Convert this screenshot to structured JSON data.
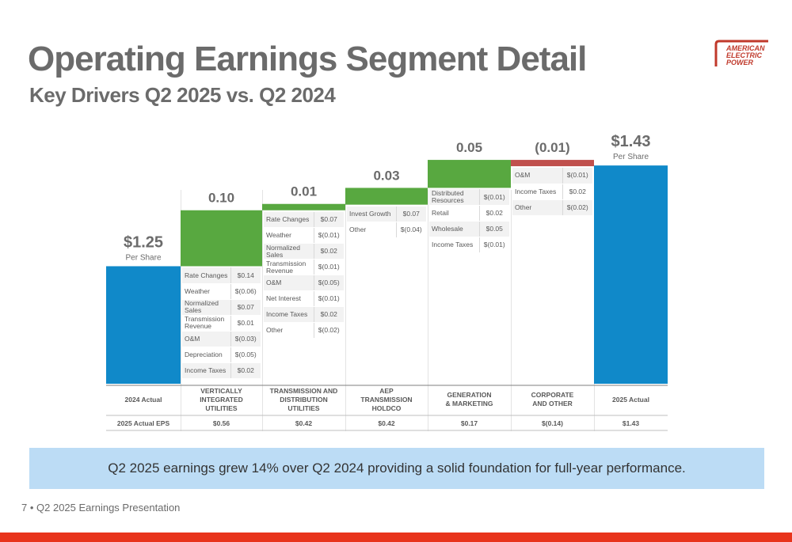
{
  "title": "Operating Earnings Segment Detail",
  "subtitle": "Key Drivers Q2 2025 vs. Q2 2024",
  "logo": {
    "lines": [
      "AMERICAN",
      "ELECTRIC",
      "POWER"
    ],
    "color": "#c0392b"
  },
  "banner_text": "Q2 2025 earnings grew 14% over Q2 2024 providing a solid foundation for full-year performance.",
  "footer": "7 • Q2 2025 Earnings Presentation",
  "colors": {
    "total": "#1089c9",
    "increase": "#58a840",
    "decrease": "#c0504d",
    "banner": "#bcdcf5",
    "accent_bar": "#e8341c"
  },
  "eps_row_label": "2025 Actual EPS",
  "chart_data": {
    "type": "bar",
    "subtype": "waterfall",
    "ylim": [
      0,
      1.45
    ],
    "grid": false,
    "legend": "none",
    "categories": [
      "2024 Actual",
      "VERTICALLY INTEGRATED UTILITIES",
      "TRANSMISSION AND DISTRIBUTION UTILITIES",
      "AEP TRANSMISSION HOLDCO",
      "GENERATION & MARKETING",
      "CORPORATE AND OTHER",
      "2025 Actual"
    ],
    "values": [
      1.25,
      0.1,
      0.01,
      0.03,
      0.05,
      -0.01,
      1.43
    ],
    "measure": [
      "total",
      "relative",
      "relative",
      "relative",
      "relative",
      "relative",
      "total"
    ],
    "value_labels": [
      "$1.25",
      "0.10",
      "0.01",
      "0.03",
      "0.05",
      "(0.01)",
      "$1.43"
    ],
    "total_sublabel": "Per Share",
    "eps_2025": [
      "",
      "$0.56",
      "$0.42",
      "$0.42",
      "$0.17",
      "$(0.14)",
      "$1.43"
    ],
    "drivers": [
      [],
      [
        [
          "Rate Changes",
          "$0.14"
        ],
        [
          "Weather",
          "$(0.06)"
        ],
        [
          "Normalized Sales",
          "$0.07"
        ],
        [
          "Transmission Revenue",
          "$0.01"
        ],
        [
          "O&M",
          "$(0.03)"
        ],
        [
          "Depreciation",
          "$(0.05)"
        ],
        [
          "Income Taxes",
          "$0.02"
        ]
      ],
      [
        [
          "Rate Changes",
          "$0.07"
        ],
        [
          "Weather",
          "$(0.01)"
        ],
        [
          "Normalized Sales",
          "$0.02"
        ],
        [
          "Transmission Revenue",
          "$(0.01)"
        ],
        [
          "O&M",
          "$(0.05)"
        ],
        [
          "Net Interest",
          "$(0.01)"
        ],
        [
          "Income Taxes",
          "$0.02"
        ],
        [
          "Other",
          "$(0.02)"
        ]
      ],
      [
        [
          "Invest Growth",
          "$0.07"
        ],
        [
          "Other",
          "$(0.04)"
        ]
      ],
      [
        [
          "Distributed Resources",
          "$(0.01)"
        ],
        [
          "Retail",
          "$0.02"
        ],
        [
          "Wholesale",
          "$0.05"
        ],
        [
          "Income Taxes",
          "$(0.01)"
        ]
      ],
      [
        [
          "O&M",
          "$(0.01)"
        ],
        [
          "Income Taxes",
          "$0.02"
        ],
        [
          "Other",
          "$(0.02)"
        ]
      ],
      []
    ]
  }
}
